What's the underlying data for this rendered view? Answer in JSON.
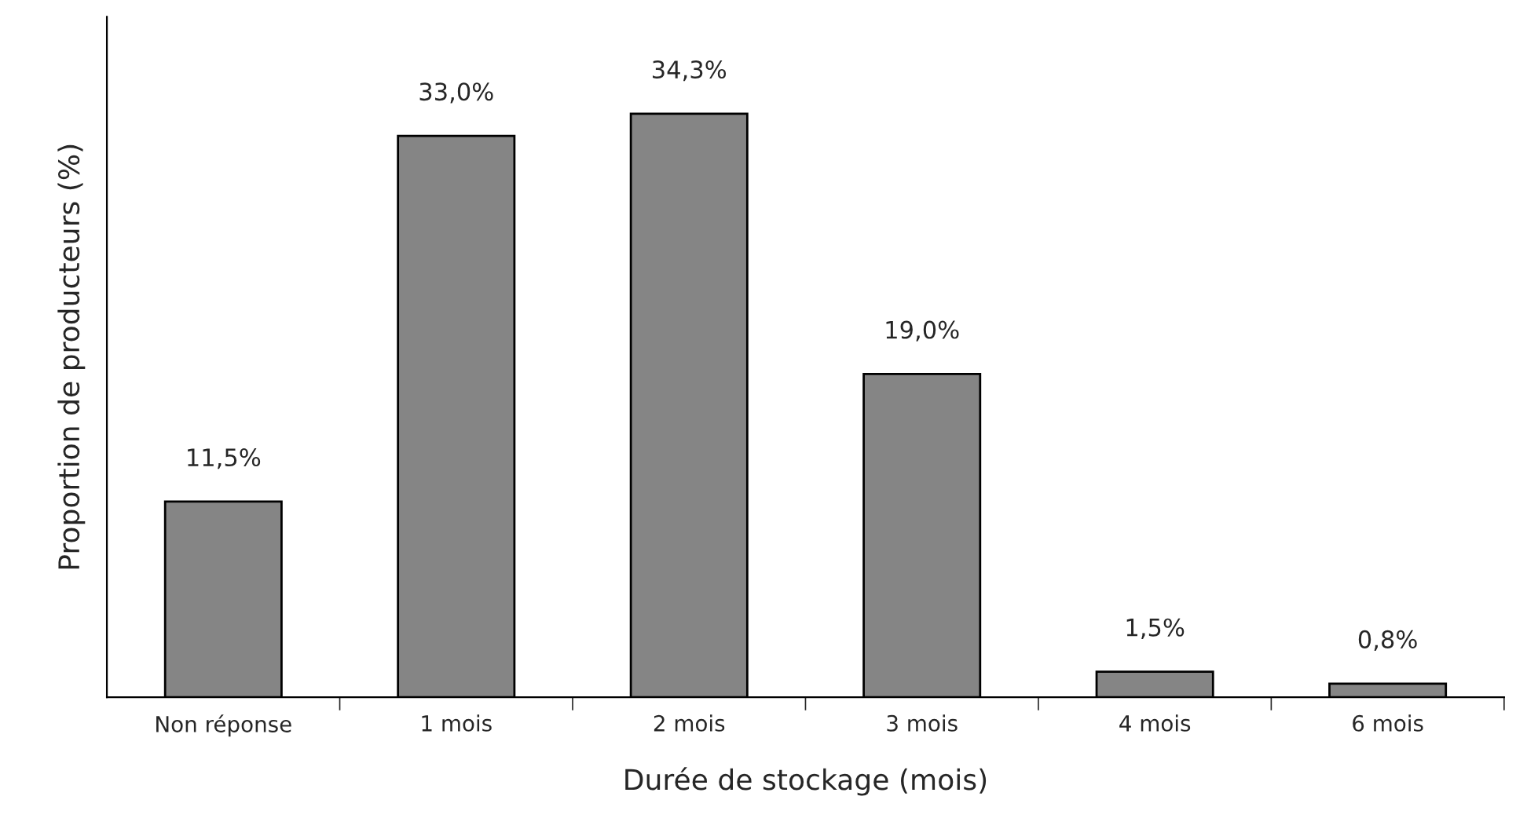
{
  "chart_data": {
    "type": "bar",
    "xlabel": "Durée de stockage (mois)",
    "ylabel": "Proportion de producteurs (%)",
    "categories": [
      "Non réponse",
      "1 mois",
      "2 mois",
      "3 mois",
      "4 mois",
      "6 mois"
    ],
    "values": [
      11.5,
      33.0,
      34.3,
      19.0,
      1.5,
      0.8
    ],
    "value_labels": [
      "11,5%",
      "33,0%",
      "34,3%",
      "19,0%",
      "1,5%",
      "0,8%"
    ],
    "color": "#858585",
    "ylim": [
      0,
      40
    ],
    "tick_labels": "x",
    "grid": false
  }
}
